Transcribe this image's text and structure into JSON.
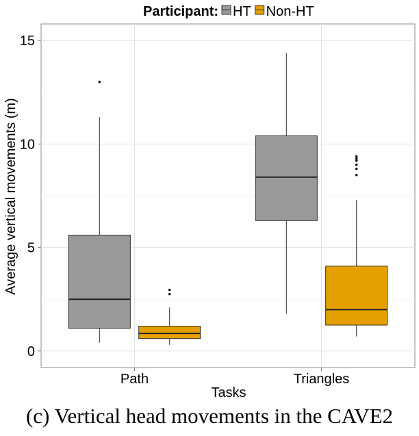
{
  "chart_data": {
    "type": "boxplot",
    "xlabel": "Tasks",
    "ylabel": "Average vertical movements (m)",
    "ylim": [
      -0.8,
      15.8
    ],
    "yticks": [
      0,
      5,
      10,
      15
    ],
    "categories": [
      "Path",
      "Triangles"
    ],
    "legend": {
      "title": "Participant:",
      "position": "top",
      "entries": [
        "HT",
        "Non-HT"
      ]
    },
    "grid": true,
    "series": [
      {
        "name": "HT",
        "color": "#999999",
        "boxes": [
          {
            "category": "Path",
            "min": 0.4,
            "q1": 1.1,
            "median": 2.5,
            "q3": 5.6,
            "max": 11.3,
            "outliers": [
              13.0
            ]
          },
          {
            "category": "Triangles",
            "min": 1.8,
            "q1": 6.3,
            "median": 8.4,
            "q3": 10.4,
            "max": 14.4,
            "outliers": []
          }
        ]
      },
      {
        "name": "Non-HT",
        "color": "#E69F00",
        "boxes": [
          {
            "category": "Path",
            "min": 0.3,
            "q1": 0.6,
            "median": 0.85,
            "q3": 1.2,
            "max": 2.1,
            "outliers": [
              2.75,
              2.95
            ]
          },
          {
            "category": "Triangles",
            "min": 0.7,
            "q1": 1.25,
            "median": 2.0,
            "q3": 4.1,
            "max": 7.3,
            "outliers": [
              8.5,
              8.8,
              9.0,
              9.2,
              9.3,
              9.4
            ]
          }
        ]
      }
    ]
  },
  "caption": "(c)  Vertical head movements in the CAVE2"
}
